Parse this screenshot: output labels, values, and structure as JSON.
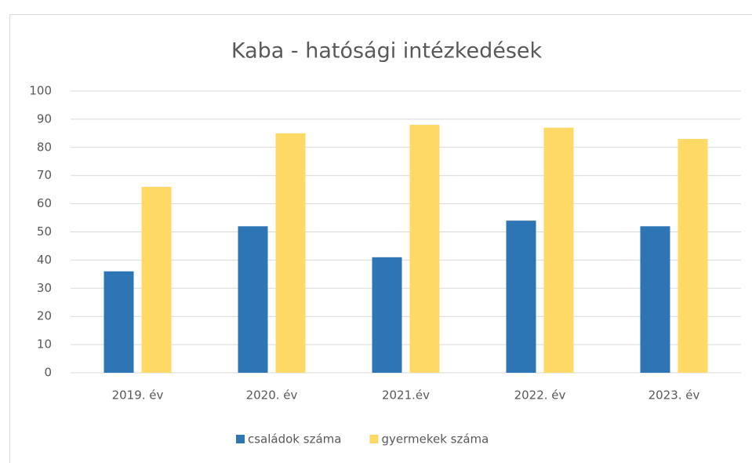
{
  "chart_data": {
    "type": "bar",
    "title": "Kaba - hatósági intézkedések",
    "categories": [
      "2019. év",
      "2020. év",
      "2021.év",
      "2022. év",
      "2023. év"
    ],
    "series": [
      {
        "name": "családok száma",
        "color": "#2e75b6",
        "values": [
          36,
          52,
          41,
          54,
          52
        ]
      },
      {
        "name": "gyermekek száma",
        "color": "#ffd966",
        "values": [
          66,
          85,
          88,
          87,
          83
        ]
      }
    ],
    "ylim": [
      0,
      100
    ],
    "yticks": [
      0,
      10,
      20,
      30,
      40,
      50,
      60,
      70,
      80,
      90,
      100
    ],
    "grid": true,
    "legend": "bottom"
  }
}
